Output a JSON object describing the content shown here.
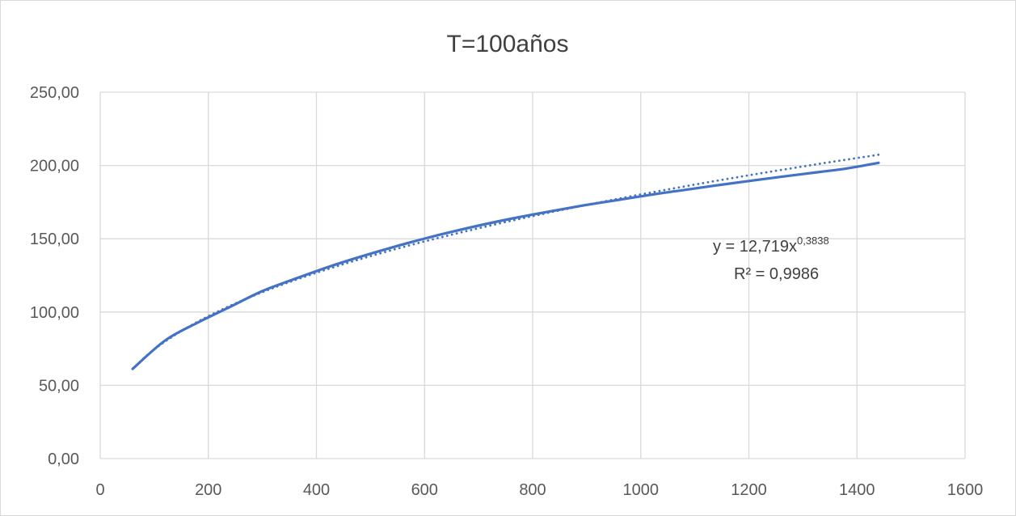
{
  "chart_data": {
    "type": "line",
    "title": "T=100años",
    "xlabel": "",
    "ylabel": "",
    "xlim": [
      0,
      1600
    ],
    "ylim": [
      0,
      250
    ],
    "x_ticks": [
      "0",
      "200",
      "400",
      "600",
      "800",
      "1000",
      "1200",
      "1400",
      "1600"
    ],
    "y_ticks": [
      "0,00",
      "50,00",
      "100,00",
      "150,00",
      "200,00",
      "250,00"
    ],
    "grid": true,
    "legend": "none",
    "series": [
      {
        "style": "solid",
        "color": "#4472c4",
        "x": [
          60,
          120,
          180,
          240,
          300,
          360,
          420,
          480,
          540,
          600,
          660,
          720,
          780,
          840,
          900,
          960,
          1020,
          1080,
          1140,
          1200,
          1260,
          1320,
          1380,
          1440
        ],
        "y": [
          61.2,
          80.6,
          92.7,
          103.5,
          114.3,
          122.6,
          130.5,
          137.6,
          144.1,
          150.1,
          155.6,
          160.6,
          165.1,
          169.2,
          173.1,
          176.6,
          180.1,
          183.3,
          186.4,
          189.4,
          192.3,
          195.1,
          197.9,
          201.8
        ]
      },
      {
        "style": "dotted",
        "color": "#4472c4",
        "trendline": "power",
        "equation": {
          "coefficient": 12.719,
          "exponent": 0.3838
        },
        "x": [
          60,
          1440
        ]
      }
    ],
    "annotation": {
      "equation_prefix": "y = 12,719x",
      "equation_exponent": "0,3838",
      "r2_text": "R² = 0,9986"
    }
  }
}
